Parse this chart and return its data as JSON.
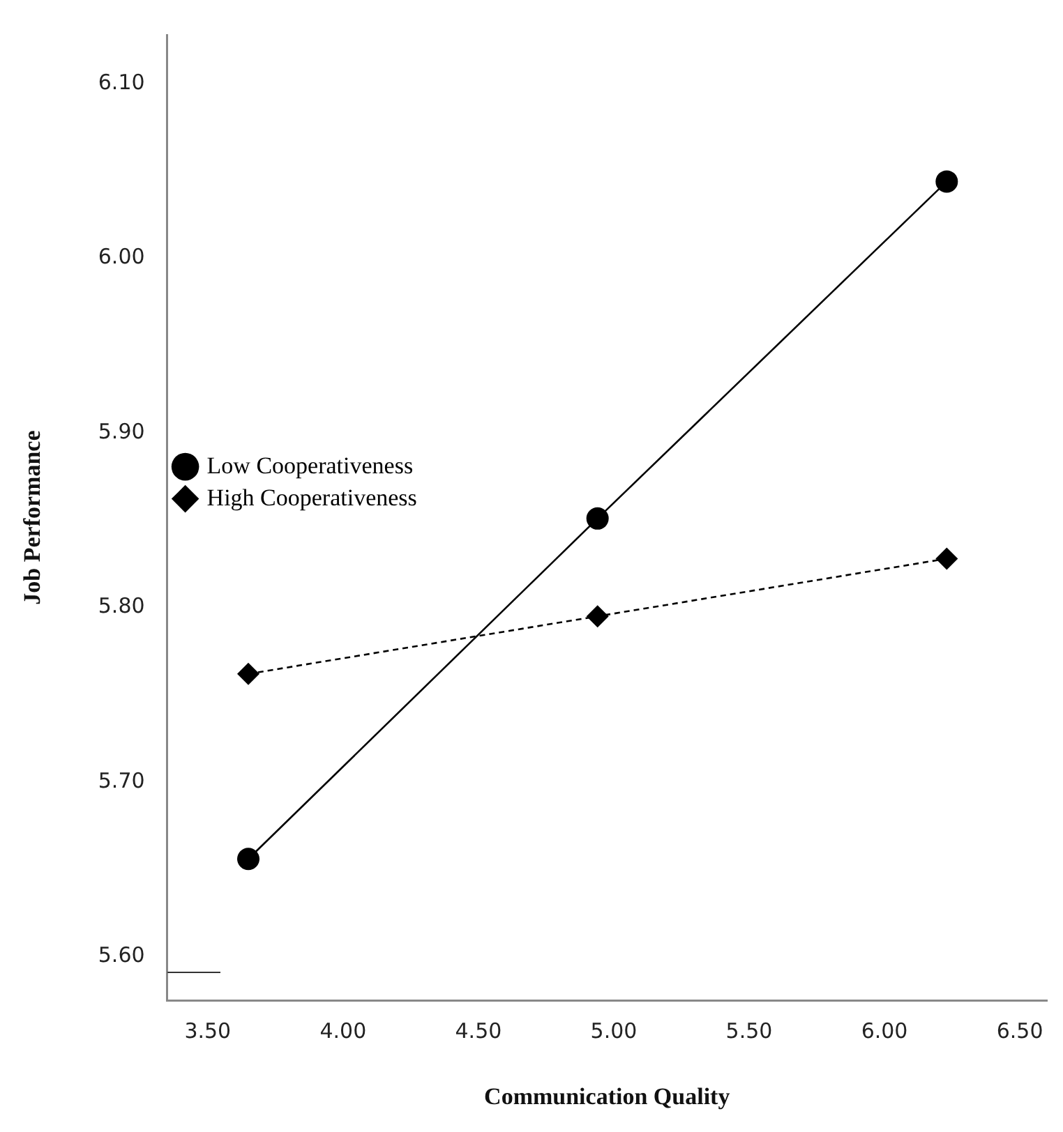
{
  "chart_data": {
    "type": "line",
    "xlabel": "Communication Quality",
    "ylabel": "Job Performance",
    "x": [
      3.65,
      4.94,
      6.23
    ],
    "series": [
      {
        "name": "Low Cooperativeness",
        "color": "#000000",
        "values": [
          5.656,
          5.851,
          6.044
        ],
        "marker": "circle",
        "line_style": "solid"
      },
      {
        "name": "High Cooperativeness",
        "color": "#000000",
        "values": [
          5.762,
          5.795,
          5.828
        ],
        "marker": "diamond",
        "line_style": "dashed"
      }
    ],
    "xlim": [
      3.35,
      6.6
    ],
    "xticks": [
      {
        "value": 3.5,
        "label": "3.50"
      },
      {
        "value": 4,
        "label": "4.00"
      },
      {
        "value": 4.5,
        "label": "4.50"
      },
      {
        "value": 5,
        "label": "5.00"
      },
      {
        "value": 5.5,
        "label": "5.50"
      },
      {
        "value": 6,
        "label": "6.00"
      },
      {
        "value": 6.5,
        "label": "6.50"
      }
    ],
    "ylim": [
      5.575,
      6.128
    ],
    "yticks": [
      {
        "value": 5.6,
        "label": "5.60"
      },
      {
        "value": 5.7,
        "label": "5.70"
      },
      {
        "value": 5.8,
        "label": "5.80"
      },
      {
        "value": 5.9,
        "label": "5.90"
      },
      {
        "value": 6,
        "label": "6.00"
      },
      {
        "value": 6.1,
        "label": "6.10"
      }
    ],
    "grid": false,
    "legend": "top"
  }
}
